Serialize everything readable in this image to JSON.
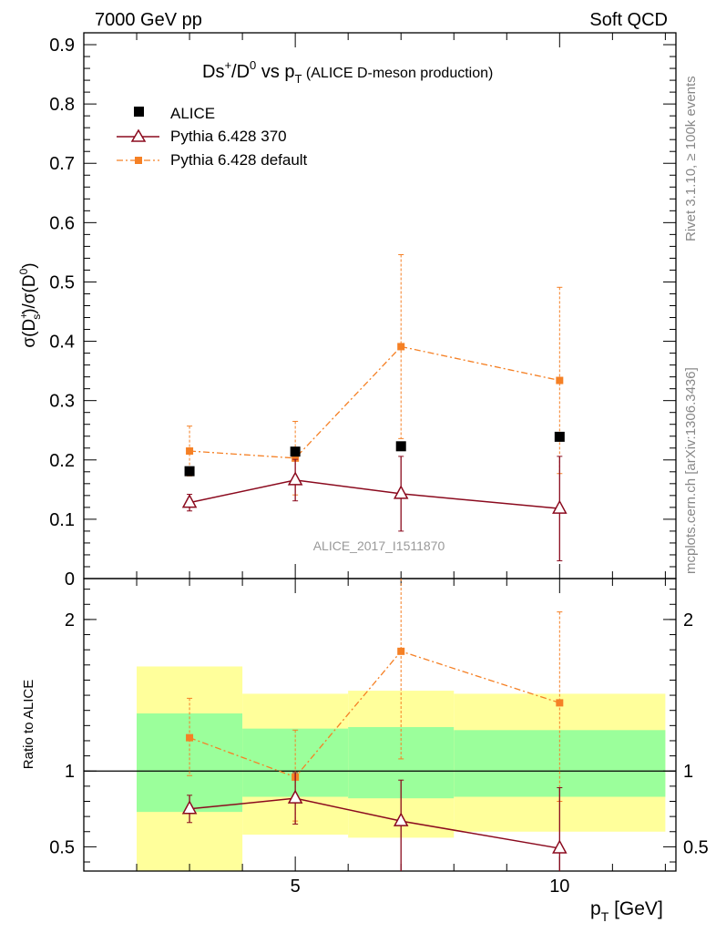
{
  "header": {
    "left": "7000 GeV pp",
    "right": "Soft QCD"
  },
  "side_labels": {
    "rivet": "Rivet 3.1.10, ≥ 100k events",
    "source": "mcplots.cern.ch [arXiv:1306.3436]"
  },
  "title": {
    "main": "Ds",
    "sup1": "+",
    "mid": "/D",
    "sup2": "0",
    "vs": " vs p",
    "sub": "T",
    "suffix": " (ALICE D-meson production)"
  },
  "analysis_id": "ALICE_2017_I1511870",
  "colors": {
    "alice": "#000000",
    "pythia370": "#8b0a1e",
    "pythiadef": "#f58025",
    "band_green": "#9bff9b",
    "band_yellow": "#ffff9b"
  },
  "chart_data": [
    {
      "type": "scatter",
      "panel": "main",
      "ylabel": "σ(D_s^+)/σ(D^0)",
      "ylim": [
        0,
        0.92
      ],
      "yticks": [
        "0",
        "0.1",
        "0.2",
        "0.3",
        "0.4",
        "0.5",
        "0.6",
        "0.7",
        "0.8",
        "0.9"
      ],
      "legend": {
        "placement": "top-left",
        "entries": [
          "ALICE",
          "Pythia 6.428 370",
          "Pythia 6.428 default"
        ]
      },
      "series": [
        {
          "name": "ALICE",
          "marker": "square",
          "x": [
            3,
            5,
            7,
            10
          ],
          "y": [
            0.181,
            0.214,
            0.223,
            0.239
          ],
          "err": [
            0.005,
            0.005,
            0.005,
            0.008
          ]
        },
        {
          "name": "Pythia 6.428 370",
          "marker": "triangle",
          "line": "solid",
          "x": [
            3,
            5,
            7,
            10
          ],
          "y": [
            0.128,
            0.166,
            0.143,
            0.118
          ],
          "err_low": [
            0.014,
            0.035,
            0.063,
            0.088
          ],
          "err_high": [
            0.014,
            0.035,
            0.063,
            0.088
          ]
        },
        {
          "name": "Pythia 6.428 default",
          "marker": "small-square",
          "line": "dashdot",
          "x": [
            3,
            5,
            7,
            10
          ],
          "y": [
            0.215,
            0.203,
            0.391,
            0.334
          ],
          "err_low": [
            0.042,
            0.062,
            0.155,
            0.157
          ],
          "err_high": [
            0.042,
            0.062,
            0.155,
            0.157
          ]
        }
      ]
    },
    {
      "type": "scatter",
      "panel": "ratio",
      "ylabel": "Ratio to ALICE",
      "xlabel": "p_T [GeV]",
      "xlim": [
        1,
        12.2
      ],
      "xticks": [
        "5",
        "10"
      ],
      "ylim": [
        0.34,
        2.27
      ],
      "yticks": [
        "0.5",
        "1",
        "2"
      ],
      "reference_line": 1,
      "bands": [
        {
          "x": [
            2,
            4
          ],
          "green": [
            0.73,
            1.38
          ],
          "yellow": [
            0.32,
            1.69
          ]
        },
        {
          "x": [
            4,
            6
          ],
          "green": [
            0.83,
            1.28
          ],
          "yellow": [
            0.58,
            1.51
          ]
        },
        {
          "x": [
            6,
            8
          ],
          "green": [
            0.82,
            1.29
          ],
          "yellow": [
            0.56,
            1.53
          ]
        },
        {
          "x": [
            8,
            12
          ],
          "green": [
            0.83,
            1.27
          ],
          "yellow": [
            0.6,
            1.51
          ]
        }
      ],
      "series": [
        {
          "name": "Pythia 6.428 370",
          "marker": "triangle",
          "line": "solid",
          "x": [
            3,
            5,
            7,
            10
          ],
          "y": [
            0.75,
            0.82,
            0.67,
            0.49
          ],
          "err_low": [
            0.09,
            0.17,
            0.33,
            0.2
          ],
          "err_high": [
            0.09,
            0.17,
            0.27,
            0.4
          ]
        },
        {
          "name": "Pythia 6.428 default",
          "marker": "small-square",
          "line": "dashdot",
          "x": [
            3,
            5,
            7,
            10
          ],
          "y": [
            1.22,
            0.96,
            1.79,
            1.45
          ],
          "err_low": [
            0.25,
            0.29,
            0.71,
            0.65
          ],
          "err_high": [
            0.26,
            0.31,
            0.55,
            0.6
          ]
        }
      ]
    }
  ]
}
